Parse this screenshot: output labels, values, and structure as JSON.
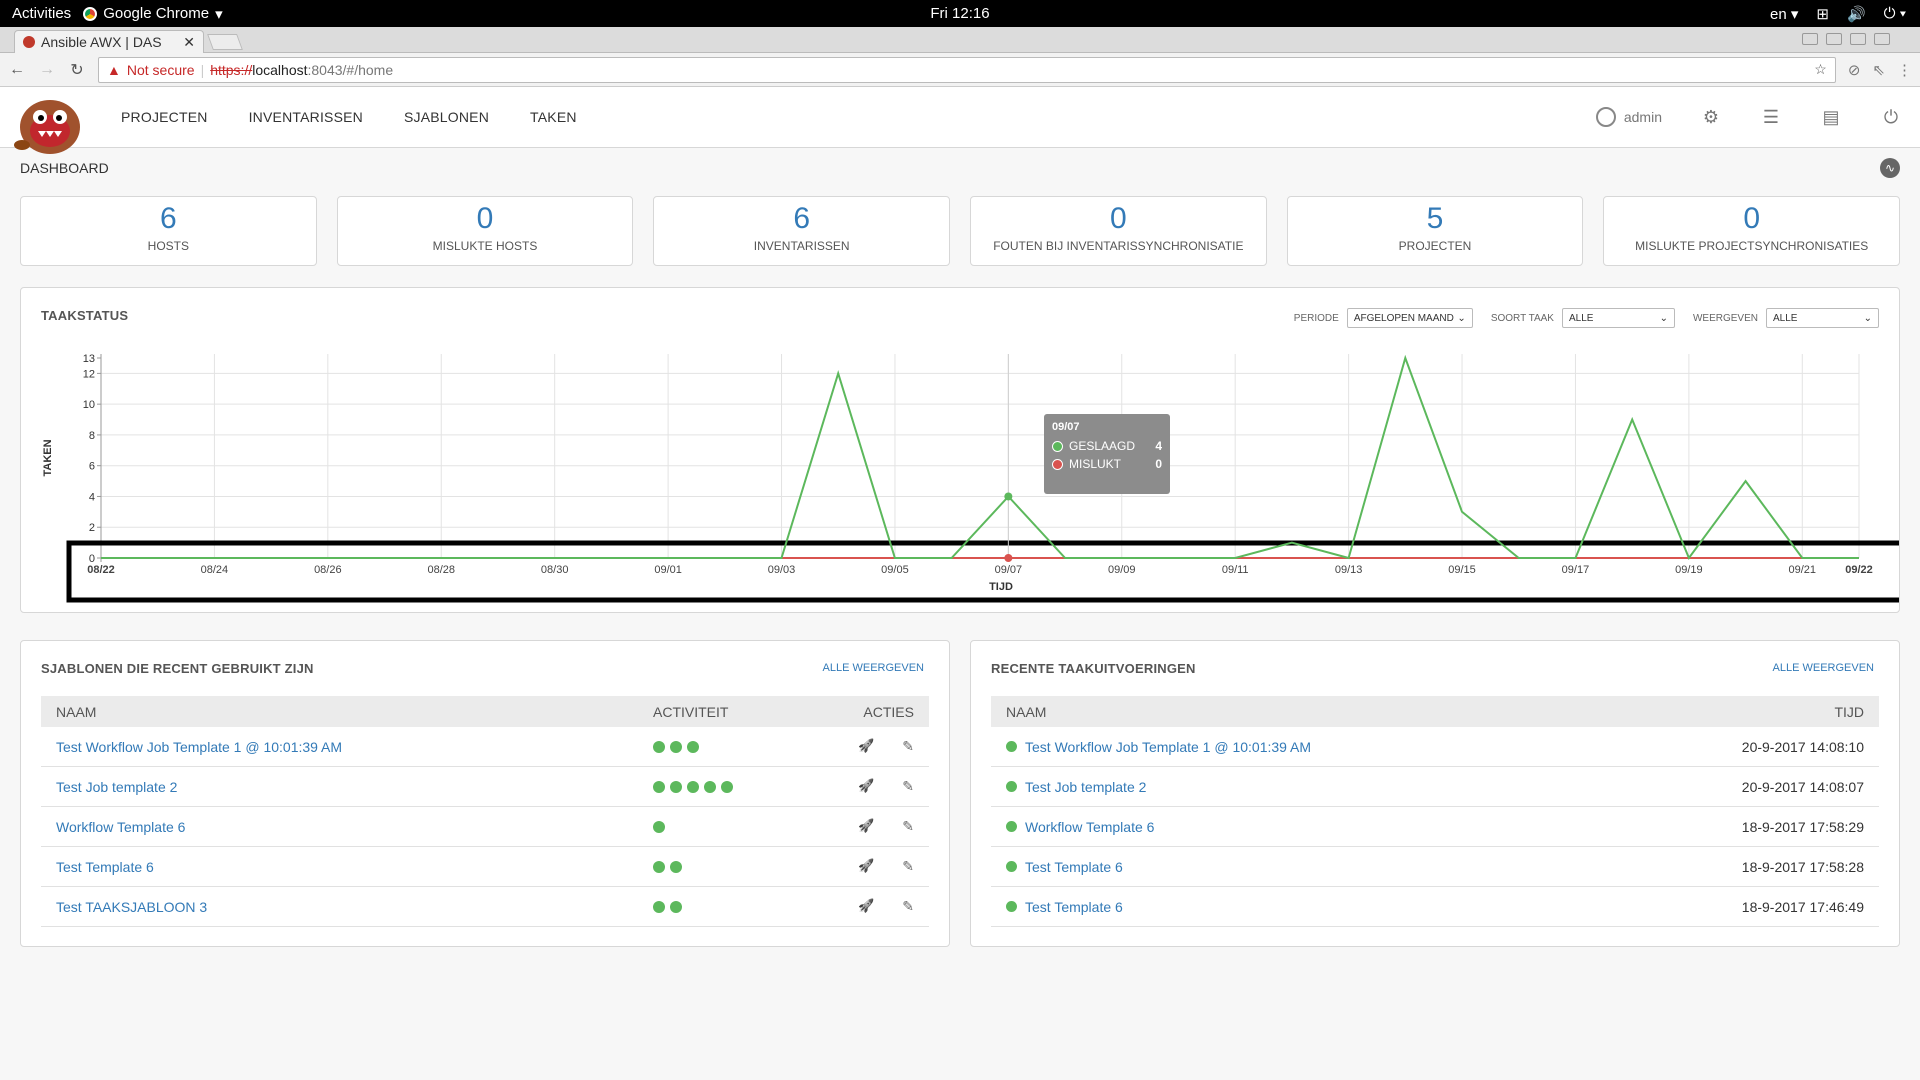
{
  "system": {
    "activities": "Activities",
    "app_name": "Google Chrome",
    "clock": "Fri 12:16",
    "lang": "en"
  },
  "browser": {
    "tab_title": "Ansible AWX | DAS",
    "not_secure": "Not secure",
    "url_scheme": "https://",
    "url_host": "localhost",
    "url_path": ":8043/#/home"
  },
  "nav": {
    "items": [
      "PROJECTEN",
      "INVENTARISSEN",
      "SJABLONEN",
      "TAKEN"
    ],
    "user": "admin"
  },
  "breadcrumb": "DASHBOARD",
  "counts": [
    {
      "value": "6",
      "label": "HOSTS"
    },
    {
      "value": "0",
      "label": "MISLUKTE HOSTS"
    },
    {
      "value": "6",
      "label": "INVENTARISSEN"
    },
    {
      "value": "0",
      "label": "FOUTEN BIJ INVENTARISSYNCHRONISATIE"
    },
    {
      "value": "5",
      "label": "PROJECTEN"
    },
    {
      "value": "0",
      "label": "MISLUKTE PROJECTSYNCHRONISATIES"
    }
  ],
  "job_status": {
    "title": "TAAKSTATUS",
    "period_label": "PERIODE",
    "period_value": "AFGELOPEN MAAND",
    "jobtype_label": "SOORT TAAK",
    "jobtype_value": "ALLE",
    "view_label": "WEERGEVEN",
    "view_value": "ALLE",
    "tooltip": {
      "date": "09/07",
      "success_label": "GESLAAGD",
      "success_value": "4",
      "fail_label": "MISLUKT",
      "fail_value": "0"
    }
  },
  "chart_data": {
    "type": "line",
    "ylabel": "TAKEN",
    "xlabel": "TIJD",
    "ylim": [
      0,
      13
    ],
    "yticks": [
      "0",
      "2",
      "4",
      "6",
      "8",
      "10",
      "12",
      "13"
    ],
    "xticks": [
      "08/22",
      "08/24",
      "08/26",
      "08/28",
      "08/30",
      "09/01",
      "09/03",
      "09/05",
      "09/07",
      "09/09",
      "09/11",
      "09/13",
      "09/15",
      "09/17",
      "09/19",
      "09/21",
      "09/22"
    ],
    "x": [
      "08/22",
      "08/23",
      "08/24",
      "08/25",
      "08/26",
      "08/27",
      "08/28",
      "08/29",
      "08/30",
      "08/31",
      "09/01",
      "09/02",
      "09/03",
      "09/04",
      "09/05",
      "09/06",
      "09/07",
      "09/08",
      "09/09",
      "09/10",
      "09/11",
      "09/12",
      "09/13",
      "09/14",
      "09/15",
      "09/16",
      "09/17",
      "09/18",
      "09/19",
      "09/20",
      "09/21",
      "09/22"
    ],
    "series": [
      {
        "name": "GESLAAGD",
        "color": "#5cb85c",
        "values": [
          0,
          0,
          0,
          0,
          0,
          0,
          0,
          0,
          0,
          0,
          0,
          0,
          0,
          12,
          0,
          0,
          4,
          0,
          0,
          0,
          0,
          1,
          0,
          13,
          3,
          0,
          0,
          9,
          0,
          5,
          0,
          0
        ]
      },
      {
        "name": "MISLUKT",
        "color": "#d9534f",
        "values": [
          0,
          0,
          0,
          0,
          0,
          0,
          0,
          0,
          0,
          0,
          0,
          0,
          0,
          0,
          0,
          0,
          0,
          0,
          0,
          0,
          0,
          0,
          0,
          0,
          0,
          0,
          0,
          0,
          0,
          0,
          0,
          0
        ]
      }
    ]
  },
  "templates": {
    "title": "SJABLONEN DIE RECENT GEBRUIKT ZIJN",
    "view_all": "ALLE WEERGEVEN",
    "col_name": "NAAM",
    "col_activity": "ACTIVITEIT",
    "col_actions": "ACTIES",
    "rows": [
      {
        "name": "Test Workflow Job Template 1 @ 10:01:39 AM",
        "activity": 3
      },
      {
        "name": "Test Job template 2",
        "activity": 5
      },
      {
        "name": "Workflow Template 6",
        "activity": 1
      },
      {
        "name": "Test Template 6",
        "activity": 2
      },
      {
        "name": "Test TAAKSJABLOON 3",
        "activity": 2
      }
    ]
  },
  "jobs": {
    "title": "RECENTE TAAKUITVOERINGEN",
    "view_all": "ALLE WEERGEVEN",
    "col_name": "NAAM",
    "col_time": "TIJD",
    "rows": [
      {
        "name": "Test Workflow Job Template 1 @ 10:01:39 AM",
        "time": "20-9-2017 14:08:10"
      },
      {
        "name": "Test Job template 2",
        "time": "20-9-2017 14:08:07"
      },
      {
        "name": "Workflow Template 6",
        "time": "18-9-2017 17:58:29"
      },
      {
        "name": "Test Template 6",
        "time": "18-9-2017 17:58:28"
      },
      {
        "name": "Test Template 6",
        "time": "18-9-2017 17:46:49"
      }
    ]
  }
}
